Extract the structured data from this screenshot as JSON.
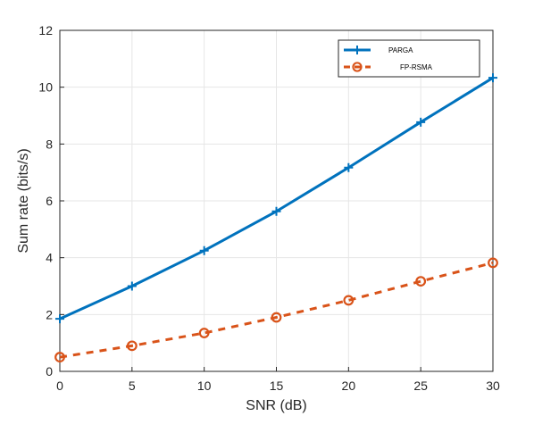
{
  "chart_data": {
    "type": "line",
    "title": "",
    "xlabel": "SNR (dB)",
    "ylabel": "Sum rate (bits/s)",
    "xlim": [
      0,
      30
    ],
    "ylim": [
      0,
      12
    ],
    "x": [
      0,
      5,
      10,
      15,
      20,
      25,
      30
    ],
    "x_ticks": [
      "0",
      "5",
      "10",
      "15",
      "20",
      "25",
      "30"
    ],
    "y_ticks": [
      "0",
      "2",
      "4",
      "6",
      "8",
      "10",
      "12"
    ],
    "grid": true,
    "legend_position": "top-right",
    "series": [
      {
        "name": "PARGA",
        "values": [
          1.85,
          3.0,
          4.25,
          5.63,
          7.17,
          8.77,
          10.33
        ],
        "color": "#0072BD",
        "line_style": "solid",
        "marker": "plus"
      },
      {
        "name": "FP-RSMA",
        "values": [
          0.5,
          0.9,
          1.35,
          1.9,
          2.5,
          3.17,
          3.82
        ],
        "color": "#D95319",
        "line_style": "dashed",
        "marker": "circle"
      }
    ]
  }
}
